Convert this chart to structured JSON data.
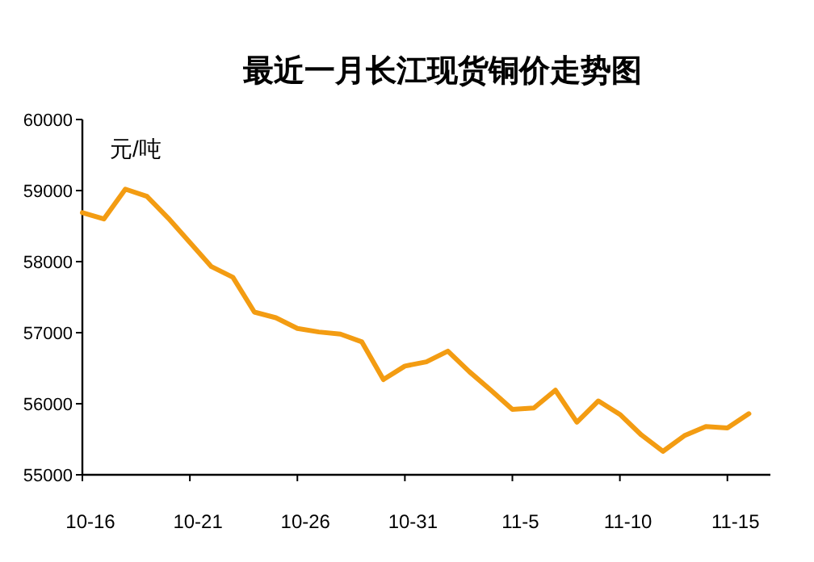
{
  "chart_data": {
    "type": "line",
    "title": "最近一月长江现货铜价走势图",
    "ylabel": "元/吨",
    "color": "#f39c12",
    "x": [
      "--10-16",
      "--10-17",
      "--10-18",
      "--10-19",
      "--10-20",
      "--10-21",
      "--10-22",
      "--10-23",
      "--10-24",
      "--10-25",
      "--10-26",
      "--10-27",
      "--10-28",
      "--10-29",
      "--10-30",
      "--10-31",
      "--11-01",
      "--11-02",
      "--11-03",
      "--11-04",
      "--11-05",
      "--11-06",
      "--11-07",
      "--11-08",
      "--11-09",
      "--11-10",
      "--11-11",
      "--11-12",
      "--11-13",
      "--11-14",
      "--11-15",
      "--11-16"
    ],
    "values": [
      58690,
      58600,
      59020,
      58920,
      58610,
      58270,
      57930,
      57780,
      57290,
      57210,
      57060,
      57010,
      56980,
      56870,
      56340,
      56530,
      56590,
      56740,
      56450,
      56190,
      55920,
      55940,
      56190,
      55740,
      56040,
      55850,
      55560,
      55330,
      55550,
      55680,
      55660,
      55860
    ],
    "xlim": [
      "--10-16",
      "--11-17"
    ],
    "ylim": [
      55000,
      60000
    ],
    "xticks": [
      {
        "value": "--10-16",
        "label": "10-16"
      },
      {
        "value": "--10-21",
        "label": "10-21"
      },
      {
        "value": "--10-26",
        "label": "10-26"
      },
      {
        "value": "--10-31",
        "label": "10-31"
      },
      {
        "value": "--11-05",
        "label": "11-5"
      },
      {
        "value": "--11-10",
        "label": "11-10"
      },
      {
        "value": "--11-15",
        "label": "11-15"
      }
    ],
    "yticks": [
      55000,
      56000,
      57000,
      58000,
      59000,
      60000
    ]
  }
}
